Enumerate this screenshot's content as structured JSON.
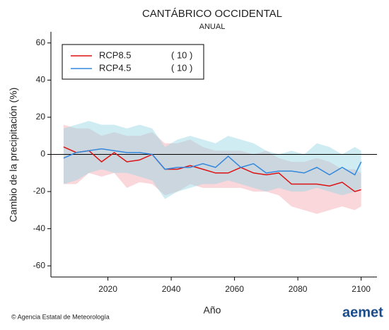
{
  "chart_data": {
    "type": "line",
    "title": "CANTÁBRICO OCCIDENTAL",
    "subtitle": "ANUAL",
    "x_label": "Año",
    "y_label": "Cambio de la precipitación (%)",
    "x": [
      2006,
      2010,
      2014,
      2018,
      2022,
      2026,
      2030,
      2034,
      2038,
      2042,
      2046,
      2050,
      2054,
      2058,
      2062,
      2066,
      2070,
      2074,
      2078,
      2082,
      2086,
      2090,
      2094,
      2098,
      2100
    ],
    "series": [
      {
        "name": "RCP8.5",
        "runs_label": "( 10 )",
        "color": "#dd1111",
        "band_color": "#f4a6ae",
        "values": [
          4,
          1,
          2,
          -4,
          1,
          -4,
          -3,
          0,
          -8,
          -8,
          -6,
          -8,
          -10,
          -10,
          -7,
          -10,
          -11,
          -10,
          -16,
          -16,
          -16,
          -17,
          -15,
          -20,
          -19
        ],
        "lower": [
          -16,
          -16,
          -10,
          -12,
          -10,
          -18,
          -15,
          -16,
          -22,
          -20,
          -16,
          -18,
          -18,
          -18,
          -18,
          -20,
          -20,
          -22,
          -28,
          -30,
          -32,
          -30,
          -28,
          -30,
          -28
        ],
        "upper": [
          16,
          14,
          14,
          10,
          12,
          10,
          10,
          12,
          6,
          6,
          8,
          4,
          2,
          2,
          2,
          0,
          2,
          -2,
          -4,
          -4,
          -2,
          -4,
          -8,
          -8,
          -10
        ]
      },
      {
        "name": "RCP4.5",
        "runs_label": "( 10 )",
        "color": "#3388dd",
        "band_color": "#94d4e4",
        "values": [
          -2,
          1,
          2,
          3,
          2,
          1,
          1,
          0,
          -8,
          -7,
          -7,
          -5,
          -7,
          -1,
          -7,
          -5,
          -10,
          -9,
          -9,
          -10,
          -7,
          -11,
          -7,
          -11,
          -4
        ],
        "lower": [
          -16,
          -14,
          -10,
          -8,
          -10,
          -10,
          -12,
          -14,
          -24,
          -20,
          -18,
          -16,
          -16,
          -14,
          -16,
          -18,
          -20,
          -18,
          -20,
          -20,
          -18,
          -20,
          -22,
          -20,
          -18
        ],
        "upper": [
          14,
          16,
          18,
          16,
          16,
          14,
          16,
          14,
          4,
          8,
          10,
          8,
          6,
          10,
          8,
          6,
          2,
          0,
          2,
          0,
          6,
          4,
          0,
          4,
          2
        ]
      }
    ],
    "xlim": [
      2002,
      2105
    ],
    "xticks": [
      2020,
      2040,
      2060,
      2080,
      2100
    ],
    "ylim": [
      -66,
      66
    ],
    "yticks": [
      -60,
      -40,
      -20,
      0,
      20,
      40,
      60
    ],
    "zero_line": true,
    "legend": "upper left",
    "footer": "© Agencia Estatal de Meteorología",
    "logo": "aemet"
  }
}
